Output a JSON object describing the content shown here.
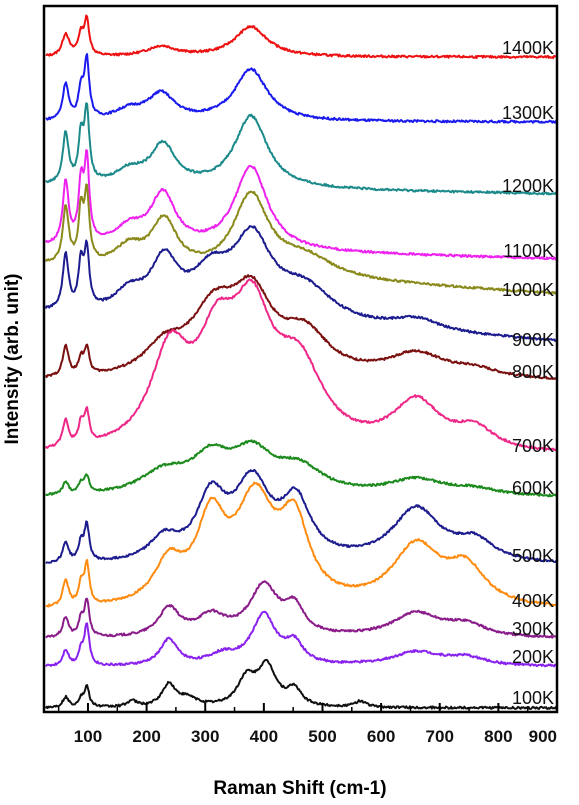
{
  "chart_data": {
    "type": "line",
    "xlabel": "Raman Shift (cm-1)",
    "ylabel": "Intensity (arb. unit)",
    "xlim": [
      25,
      900
    ],
    "xticks": [
      100,
      200,
      300,
      400,
      500,
      600,
      700,
      800,
      900
    ],
    "y_ticks_shown": false,
    "grid": false,
    "series": [
      {
        "name": "1400K",
        "color": "#ee1111",
        "offset": 58,
        "baseline": 0.9,
        "slope": 0,
        "peaks": [
          [
            62,
            7,
            22
          ],
          [
            88,
            6,
            20
          ],
          [
            98,
            5,
            34
          ],
          [
            225,
            30,
            10
          ],
          [
            378,
            34,
            30
          ]
        ]
      },
      {
        "name": "1300K",
        "color": "#1a1aee",
        "offset": 123,
        "baseline": 1,
        "slope": 0,
        "peaks": [
          [
            62,
            6,
            36
          ],
          [
            88,
            5,
            28
          ],
          [
            98,
            5,
            58
          ],
          [
            170,
            30,
            10
          ],
          [
            225,
            28,
            26
          ],
          [
            378,
            34,
            52
          ]
        ]
      },
      {
        "name": "1200K",
        "color": "#1c8a8a",
        "offset": 196,
        "baseline": 2,
        "slope": 8,
        "peaks": [
          [
            62,
            6,
            50
          ],
          [
            88,
            5,
            44
          ],
          [
            98,
            5,
            70
          ],
          [
            170,
            30,
            14
          ],
          [
            228,
            26,
            40
          ],
          [
            378,
            34,
            72
          ]
        ]
      },
      {
        "name": "1100K",
        "color": "#ee22ee",
        "offset": 261,
        "baseline": 2,
        "slope": 12,
        "peaks": [
          [
            62,
            6,
            62
          ],
          [
            88,
            5,
            56
          ],
          [
            98,
            5,
            80
          ],
          [
            170,
            30,
            18
          ],
          [
            228,
            26,
            52
          ],
          [
            378,
            34,
            84
          ]
        ]
      },
      {
        "name": "1000K",
        "color": "#8a8a1c",
        "offset": 300,
        "baseline": 6,
        "slope": 28,
        "peaks": [
          [
            62,
            6,
            56
          ],
          [
            88,
            5,
            50
          ],
          [
            98,
            5,
            66
          ],
          [
            170,
            30,
            20
          ],
          [
            230,
            26,
            48
          ],
          [
            378,
            36,
            78
          ],
          [
            470,
            60,
            20
          ]
        ]
      },
      {
        "name": "900K",
        "color": "#1c1c8e",
        "offset": 350,
        "baseline": 8,
        "slope": 28,
        "peaks": [
          [
            62,
            6,
            54
          ],
          [
            88,
            5,
            44
          ],
          [
            98,
            5,
            56
          ],
          [
            170,
            30,
            20
          ],
          [
            230,
            28,
            52
          ],
          [
            310,
            40,
            40
          ],
          [
            380,
            40,
            76
          ],
          [
            470,
            60,
            34
          ],
          [
            660,
            50,
            12
          ]
        ]
      },
      {
        "name": "800K",
        "color": "#7a1010",
        "offset": 382,
        "baseline": 0,
        "slope": 0,
        "peaks": [
          [
            62,
            6,
            30
          ],
          [
            88,
            5,
            16
          ],
          [
            98,
            5,
            26
          ],
          [
            230,
            40,
            26
          ],
          [
            315,
            50,
            62
          ],
          [
            380,
            42,
            70
          ],
          [
            470,
            50,
            40
          ],
          [
            660,
            60,
            24
          ],
          [
            760,
            50,
            8
          ]
        ]
      },
      {
        "name": "700K",
        "color": "#ee2888",
        "offset": 456,
        "baseline": 0,
        "slope": 0,
        "peaks": [
          [
            62,
            6,
            26
          ],
          [
            88,
            5,
            20
          ],
          [
            98,
            5,
            30
          ],
          [
            240,
            40,
            92
          ],
          [
            320,
            40,
            88
          ],
          [
            380,
            42,
            118
          ],
          [
            460,
            50,
            76
          ],
          [
            660,
            50,
            48
          ],
          [
            760,
            40,
            20
          ]
        ]
      },
      {
        "name": "600K",
        "color": "#1c8a1c",
        "offset": 498,
        "baseline": 0,
        "slope": 0,
        "peaks": [
          [
            62,
            6,
            12
          ],
          [
            88,
            5,
            10
          ],
          [
            98,
            5,
            16
          ],
          [
            230,
            50,
            22
          ],
          [
            310,
            40,
            34
          ],
          [
            380,
            42,
            38
          ],
          [
            460,
            50,
            26
          ],
          [
            660,
            60,
            16
          ],
          [
            760,
            50,
            6
          ]
        ]
      },
      {
        "name": "500K",
        "color": "#1c1c8e",
        "offset": 566,
        "baseline": 0,
        "slope": 0,
        "peaks": [
          [
            62,
            6,
            20
          ],
          [
            88,
            5,
            18
          ],
          [
            98,
            5,
            36
          ],
          [
            230,
            30,
            22
          ],
          [
            310,
            30,
            60
          ],
          [
            380,
            38,
            76
          ],
          [
            455,
            30,
            56
          ],
          [
            660,
            50,
            54
          ],
          [
            760,
            40,
            20
          ]
        ]
      },
      {
        "name": "400K",
        "color": "#ff8c10",
        "offset": 611,
        "baseline": 0,
        "slope": 0,
        "peaks": [
          [
            62,
            6,
            26
          ],
          [
            88,
            5,
            20
          ],
          [
            98,
            5,
            40
          ],
          [
            238,
            30,
            40
          ],
          [
            310,
            30,
            80
          ],
          [
            385,
            40,
            100
          ],
          [
            452,
            30,
            76
          ],
          [
            660,
            50,
            60
          ],
          [
            745,
            40,
            36
          ]
        ]
      },
      {
        "name": "300K",
        "color": "#8a1c8a",
        "offset": 639,
        "baseline": 0,
        "slope": 0,
        "peaks": [
          [
            62,
            6,
            20
          ],
          [
            88,
            5,
            16
          ],
          [
            98,
            5,
            36
          ],
          [
            238,
            22,
            28
          ],
          [
            310,
            30,
            20
          ],
          [
            400,
            30,
            50
          ],
          [
            452,
            20,
            26
          ],
          [
            660,
            50,
            24
          ],
          [
            745,
            40,
            12
          ]
        ]
      },
      {
        "name": "200K",
        "color": "#8a22ee",
        "offset": 667,
        "baseline": 0,
        "slope": 0,
        "peaks": [
          [
            62,
            6,
            16
          ],
          [
            88,
            5,
            14
          ],
          [
            98,
            5,
            40
          ],
          [
            238,
            18,
            26
          ],
          [
            330,
            30,
            10
          ],
          [
            400,
            25,
            50
          ],
          [
            452,
            18,
            20
          ],
          [
            660,
            50,
            14
          ],
          [
            745,
            40,
            8
          ]
        ]
      },
      {
        "name": "100K",
        "color": "#111111",
        "offset": 708,
        "baseline": 0,
        "slope": 0,
        "peaks": [
          [
            62,
            6,
            10
          ],
          [
            88,
            5,
            8
          ],
          [
            98,
            5,
            20
          ],
          [
            175,
            10,
            6
          ],
          [
            238,
            14,
            22
          ],
          [
            270,
            20,
            8
          ],
          [
            370,
            18,
            26
          ],
          [
            405,
            20,
            40
          ],
          [
            452,
            14,
            16
          ],
          [
            565,
            12,
            6
          ]
        ]
      }
    ]
  }
}
